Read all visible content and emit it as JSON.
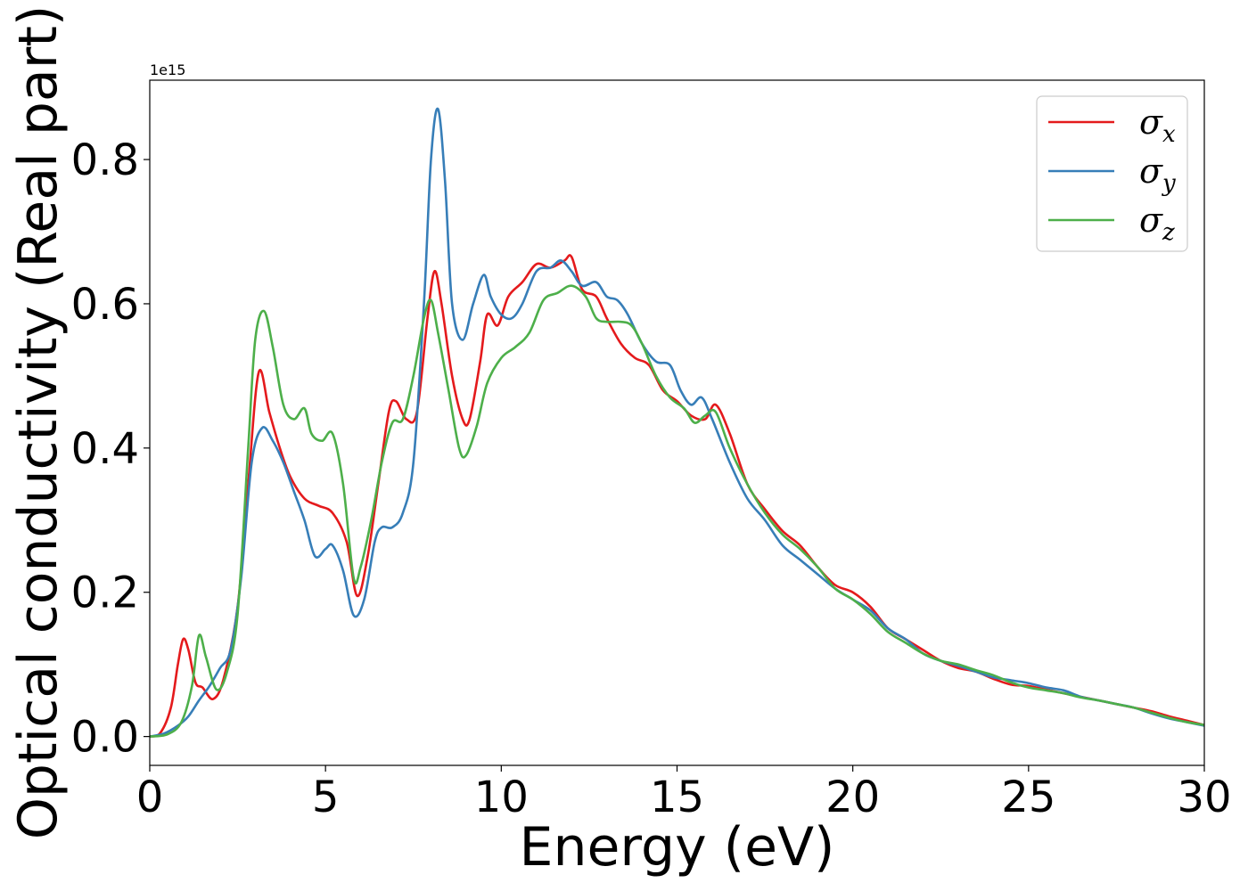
{
  "chart_data": {
    "type": "line",
    "title": "",
    "xlabel": "Energy (eV)",
    "ylabel": "Optical conductivity (Real part)",
    "y_offset_text": "1e15",
    "xlim": [
      0,
      30
    ],
    "ylim": [
      -0.04,
      0.91
    ],
    "xticks": [
      0,
      5,
      10,
      15,
      20,
      25,
      30
    ],
    "xtick_labels": [
      "0",
      "5",
      "10",
      "15",
      "20",
      "25",
      "30"
    ],
    "yticks": [
      0.0,
      0.2,
      0.4,
      0.6,
      0.8
    ],
    "ytick_labels": [
      "0.0",
      "0.2",
      "0.4",
      "0.6",
      "0.8"
    ],
    "grid": false,
    "legend_position": "top-right",
    "series": [
      {
        "name": "σx",
        "symbol": "σ",
        "subscript": "x",
        "color": "#e41a1c",
        "x": [
          0,
          0.3,
          0.6,
          0.8,
          0.95,
          1.1,
          1.3,
          1.5,
          1.8,
          2.1,
          2.5,
          2.8,
          3.1,
          3.4,
          3.7,
          4.0,
          4.4,
          4.8,
          5.2,
          5.6,
          5.9,
          6.2,
          6.5,
          6.8,
          7.0,
          7.3,
          7.6,
          7.9,
          8.1,
          8.3,
          8.6,
          8.9,
          9.1,
          9.4,
          9.6,
          9.9,
          10.2,
          10.6,
          11.0,
          11.4,
          11.8,
          12.0,
          12.3,
          12.7,
          13.0,
          13.4,
          13.8,
          14.2,
          14.6,
          15.0,
          15.4,
          15.8,
          16.1,
          16.5,
          17.0,
          17.5,
          18.0,
          18.5,
          19.0,
          19.5,
          20.0,
          20.5,
          21.0,
          21.5,
          22.0,
          22.5,
          23.0,
          23.5,
          24.0,
          24.5,
          25.0,
          25.5,
          26.0,
          26.5,
          27.0,
          27.5,
          28.0,
          28.5,
          29.0,
          29.5,
          30.0
        ],
        "y": [
          0.0,
          0.005,
          0.04,
          0.1,
          0.135,
          0.12,
          0.075,
          0.068,
          0.052,
          0.08,
          0.18,
          0.35,
          0.505,
          0.45,
          0.4,
          0.36,
          0.33,
          0.32,
          0.31,
          0.27,
          0.195,
          0.25,
          0.35,
          0.45,
          0.465,
          0.44,
          0.45,
          0.58,
          0.645,
          0.6,
          0.5,
          0.44,
          0.44,
          0.52,
          0.585,
          0.57,
          0.61,
          0.63,
          0.655,
          0.65,
          0.66,
          0.665,
          0.62,
          0.61,
          0.58,
          0.545,
          0.525,
          0.515,
          0.48,
          0.465,
          0.445,
          0.44,
          0.46,
          0.42,
          0.35,
          0.315,
          0.285,
          0.265,
          0.235,
          0.21,
          0.2,
          0.18,
          0.15,
          0.135,
          0.12,
          0.105,
          0.095,
          0.09,
          0.08,
          0.072,
          0.07,
          0.065,
          0.06,
          0.055,
          0.05,
          0.045,
          0.04,
          0.035,
          0.028,
          0.022,
          0.016
        ]
      },
      {
        "name": "σy",
        "symbol": "σ",
        "subscript": "y",
        "color": "#377eb8",
        "x": [
          0,
          0.4,
          0.8,
          1.1,
          1.4,
          1.7,
          2.0,
          2.3,
          2.6,
          2.9,
          3.2,
          3.5,
          3.8,
          4.1,
          4.4,
          4.7,
          5.0,
          5.2,
          5.5,
          5.8,
          6.1,
          6.4,
          6.6,
          6.9,
          7.2,
          7.5,
          7.8,
          8.0,
          8.2,
          8.4,
          8.6,
          8.9,
          9.2,
          9.5,
          9.7,
          10.0,
          10.3,
          10.6,
          11.0,
          11.4,
          11.7,
          12.0,
          12.3,
          12.7,
          13.0,
          13.3,
          13.6,
          14.0,
          14.4,
          14.8,
          15.1,
          15.4,
          15.7,
          16.0,
          16.5,
          17.0,
          17.5,
          18.0,
          18.5,
          19.0,
          19.5,
          20.0,
          20.5,
          21.0,
          21.5,
          22.0,
          22.5,
          23.0,
          23.5,
          24.0,
          24.5,
          25.0,
          25.5,
          26.0,
          26.5,
          27.0,
          27.5,
          28.0,
          28.5,
          29.0,
          29.5,
          30.0
        ],
        "y": [
          0.0,
          0.004,
          0.015,
          0.028,
          0.05,
          0.07,
          0.095,
          0.12,
          0.22,
          0.38,
          0.428,
          0.41,
          0.38,
          0.34,
          0.3,
          0.25,
          0.26,
          0.265,
          0.23,
          0.168,
          0.19,
          0.27,
          0.29,
          0.29,
          0.31,
          0.38,
          0.6,
          0.8,
          0.87,
          0.77,
          0.6,
          0.55,
          0.6,
          0.64,
          0.61,
          0.585,
          0.58,
          0.6,
          0.645,
          0.65,
          0.66,
          0.645,
          0.625,
          0.63,
          0.61,
          0.605,
          0.585,
          0.545,
          0.52,
          0.515,
          0.48,
          0.46,
          0.47,
          0.44,
          0.38,
          0.33,
          0.3,
          0.265,
          0.245,
          0.225,
          0.205,
          0.19,
          0.175,
          0.15,
          0.135,
          0.115,
          0.105,
          0.098,
          0.09,
          0.082,
          0.078,
          0.074,
          0.068,
          0.064,
          0.055,
          0.05,
          0.045,
          0.04,
          0.032,
          0.025,
          0.02,
          0.015
        ]
      },
      {
        "name": "σz",
        "symbol": "σ",
        "subscript": "z",
        "color": "#4daf4a",
        "x": [
          0,
          0.5,
          0.9,
          1.2,
          1.4,
          1.6,
          1.9,
          2.2,
          2.5,
          2.8,
          3.0,
          3.25,
          3.5,
          3.8,
          4.1,
          4.4,
          4.6,
          4.9,
          5.2,
          5.5,
          5.8,
          6.0,
          6.3,
          6.6,
          6.9,
          7.2,
          7.5,
          7.8,
          8.0,
          8.2,
          8.5,
          8.8,
          9.0,
          9.3,
          9.6,
          10.0,
          10.4,
          10.8,
          11.2,
          11.6,
          12.0,
          12.4,
          12.7,
          13.0,
          13.4,
          13.7,
          14.0,
          14.4,
          14.8,
          15.2,
          15.5,
          15.8,
          16.1,
          16.5,
          17.0,
          17.5,
          18.0,
          18.5,
          19.0,
          19.5,
          20.0,
          20.5,
          21.0,
          21.5,
          22.0,
          22.5,
          23.0,
          23.5,
          24.0,
          24.5,
          25.0,
          25.5,
          26.0,
          26.5,
          27.0,
          27.5,
          28.0,
          28.5,
          29.0,
          29.5,
          30.0
        ],
        "y": [
          0.0,
          0.003,
          0.02,
          0.07,
          0.14,
          0.11,
          0.065,
          0.09,
          0.17,
          0.4,
          0.55,
          0.59,
          0.54,
          0.46,
          0.44,
          0.455,
          0.42,
          0.41,
          0.42,
          0.35,
          0.22,
          0.235,
          0.3,
          0.38,
          0.435,
          0.44,
          0.5,
          0.58,
          0.605,
          0.56,
          0.48,
          0.4,
          0.39,
          0.43,
          0.49,
          0.525,
          0.54,
          0.56,
          0.605,
          0.615,
          0.625,
          0.61,
          0.58,
          0.575,
          0.575,
          0.57,
          0.545,
          0.5,
          0.47,
          0.455,
          0.435,
          0.445,
          0.45,
          0.4,
          0.35,
          0.31,
          0.28,
          0.26,
          0.235,
          0.205,
          0.19,
          0.17,
          0.145,
          0.13,
          0.115,
          0.105,
          0.1,
          0.092,
          0.085,
          0.075,
          0.068,
          0.064,
          0.06,
          0.054,
          0.05,
          0.045,
          0.04,
          0.033,
          0.026,
          0.02,
          0.016
        ]
      }
    ]
  }
}
